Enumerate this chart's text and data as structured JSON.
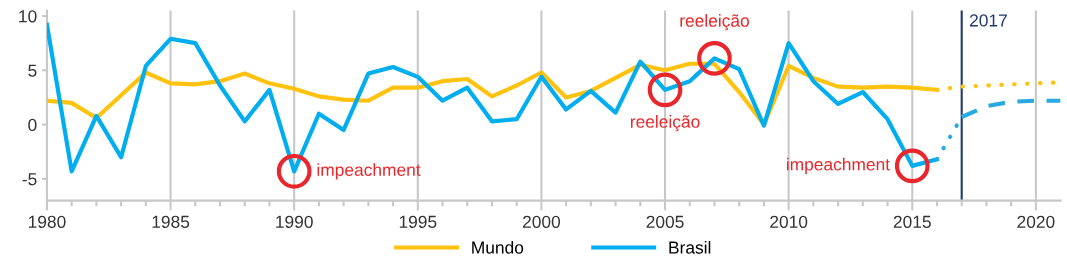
{
  "chart_data": {
    "type": "line",
    "x": [
      1980,
      1981,
      1982,
      1983,
      1984,
      1985,
      1986,
      1987,
      1988,
      1989,
      1990,
      1991,
      1992,
      1993,
      1994,
      1995,
      1996,
      1997,
      1998,
      1999,
      2000,
      2001,
      2002,
      2003,
      2004,
      2005,
      2006,
      2007,
      2008,
      2009,
      2010,
      2011,
      2012,
      2013,
      2014,
      2015,
      2016
    ],
    "series": [
      {
        "name": "Mundo",
        "color": "#ffc20e",
        "values": [
          2.2,
          2.0,
          0.6,
          2.7,
          4.8,
          3.8,
          3.7,
          4.0,
          4.7,
          3.8,
          3.3,
          2.6,
          2.3,
          2.2,
          3.4,
          3.4,
          4.0,
          4.2,
          2.6,
          3.6,
          4.8,
          2.5,
          3.1,
          4.3,
          5.5,
          5.0,
          5.6,
          5.6,
          3.0,
          0.0,
          5.4,
          4.3,
          3.5,
          3.4,
          3.5,
          3.4,
          3.2
        ]
      },
      {
        "name": "Brasil",
        "color": "#00aeef",
        "values": [
          9.2,
          -4.3,
          0.8,
          -3.0,
          5.4,
          7.9,
          7.5,
          3.6,
          0.3,
          3.2,
          -4.3,
          1.0,
          -0.5,
          4.7,
          5.3,
          4.4,
          2.2,
          3.4,
          0.3,
          0.5,
          4.4,
          1.4,
          3.1,
          1.1,
          5.8,
          3.2,
          4.0,
          6.1,
          5.1,
          -0.1,
          7.5,
          4.0,
          1.9,
          3.0,
          0.5,
          -3.8,
          -3.2
        ]
      },
      {
        "color": "#ffc20e",
        "line_style": "dotted",
        "x": [
          2016,
          2017,
          2018,
          2019,
          2020,
          2021
        ],
        "values": [
          3.2,
          3.5,
          3.6,
          3.7,
          3.8,
          3.9
        ]
      },
      {
        "color": "#29abe2",
        "line_style": "dotted",
        "x": [
          2016,
          2017
        ],
        "values": [
          -3.2,
          0.7
        ]
      },
      {
        "color": "#29abe2",
        "line_style": "dashed",
        "x": [
          2017,
          2018,
          2019,
          2020,
          2021
        ],
        "values": [
          0.7,
          1.7,
          2.1,
          2.2,
          2.2
        ]
      }
    ],
    "xlim": [
      1980,
      2021
    ],
    "xticks": [
      1980,
      1985,
      1990,
      1995,
      2000,
      2005,
      2010,
      2015,
      2020
    ],
    "ylim": [
      -7,
      10.5
    ],
    "yticks": [
      -5,
      0,
      5,
      10
    ],
    "grid": "x",
    "legend": "bottom",
    "line_style": "solid",
    "marker": "none",
    "ref_lines": [
      {
        "axis": "x",
        "value": 2017,
        "label": "2017",
        "color": "#1f3a6e"
      }
    ],
    "annotations": [
      {
        "text": "impeachment",
        "x": 1990,
        "y": -4.3
      },
      {
        "text": "reeleição",
        "x": 2005,
        "y": 3.2
      },
      {
        "text": "reeleição",
        "x": 2007,
        "y": 6.1
      },
      {
        "text": "impeachment",
        "x": 2015,
        "y": -3.8
      }
    ]
  }
}
